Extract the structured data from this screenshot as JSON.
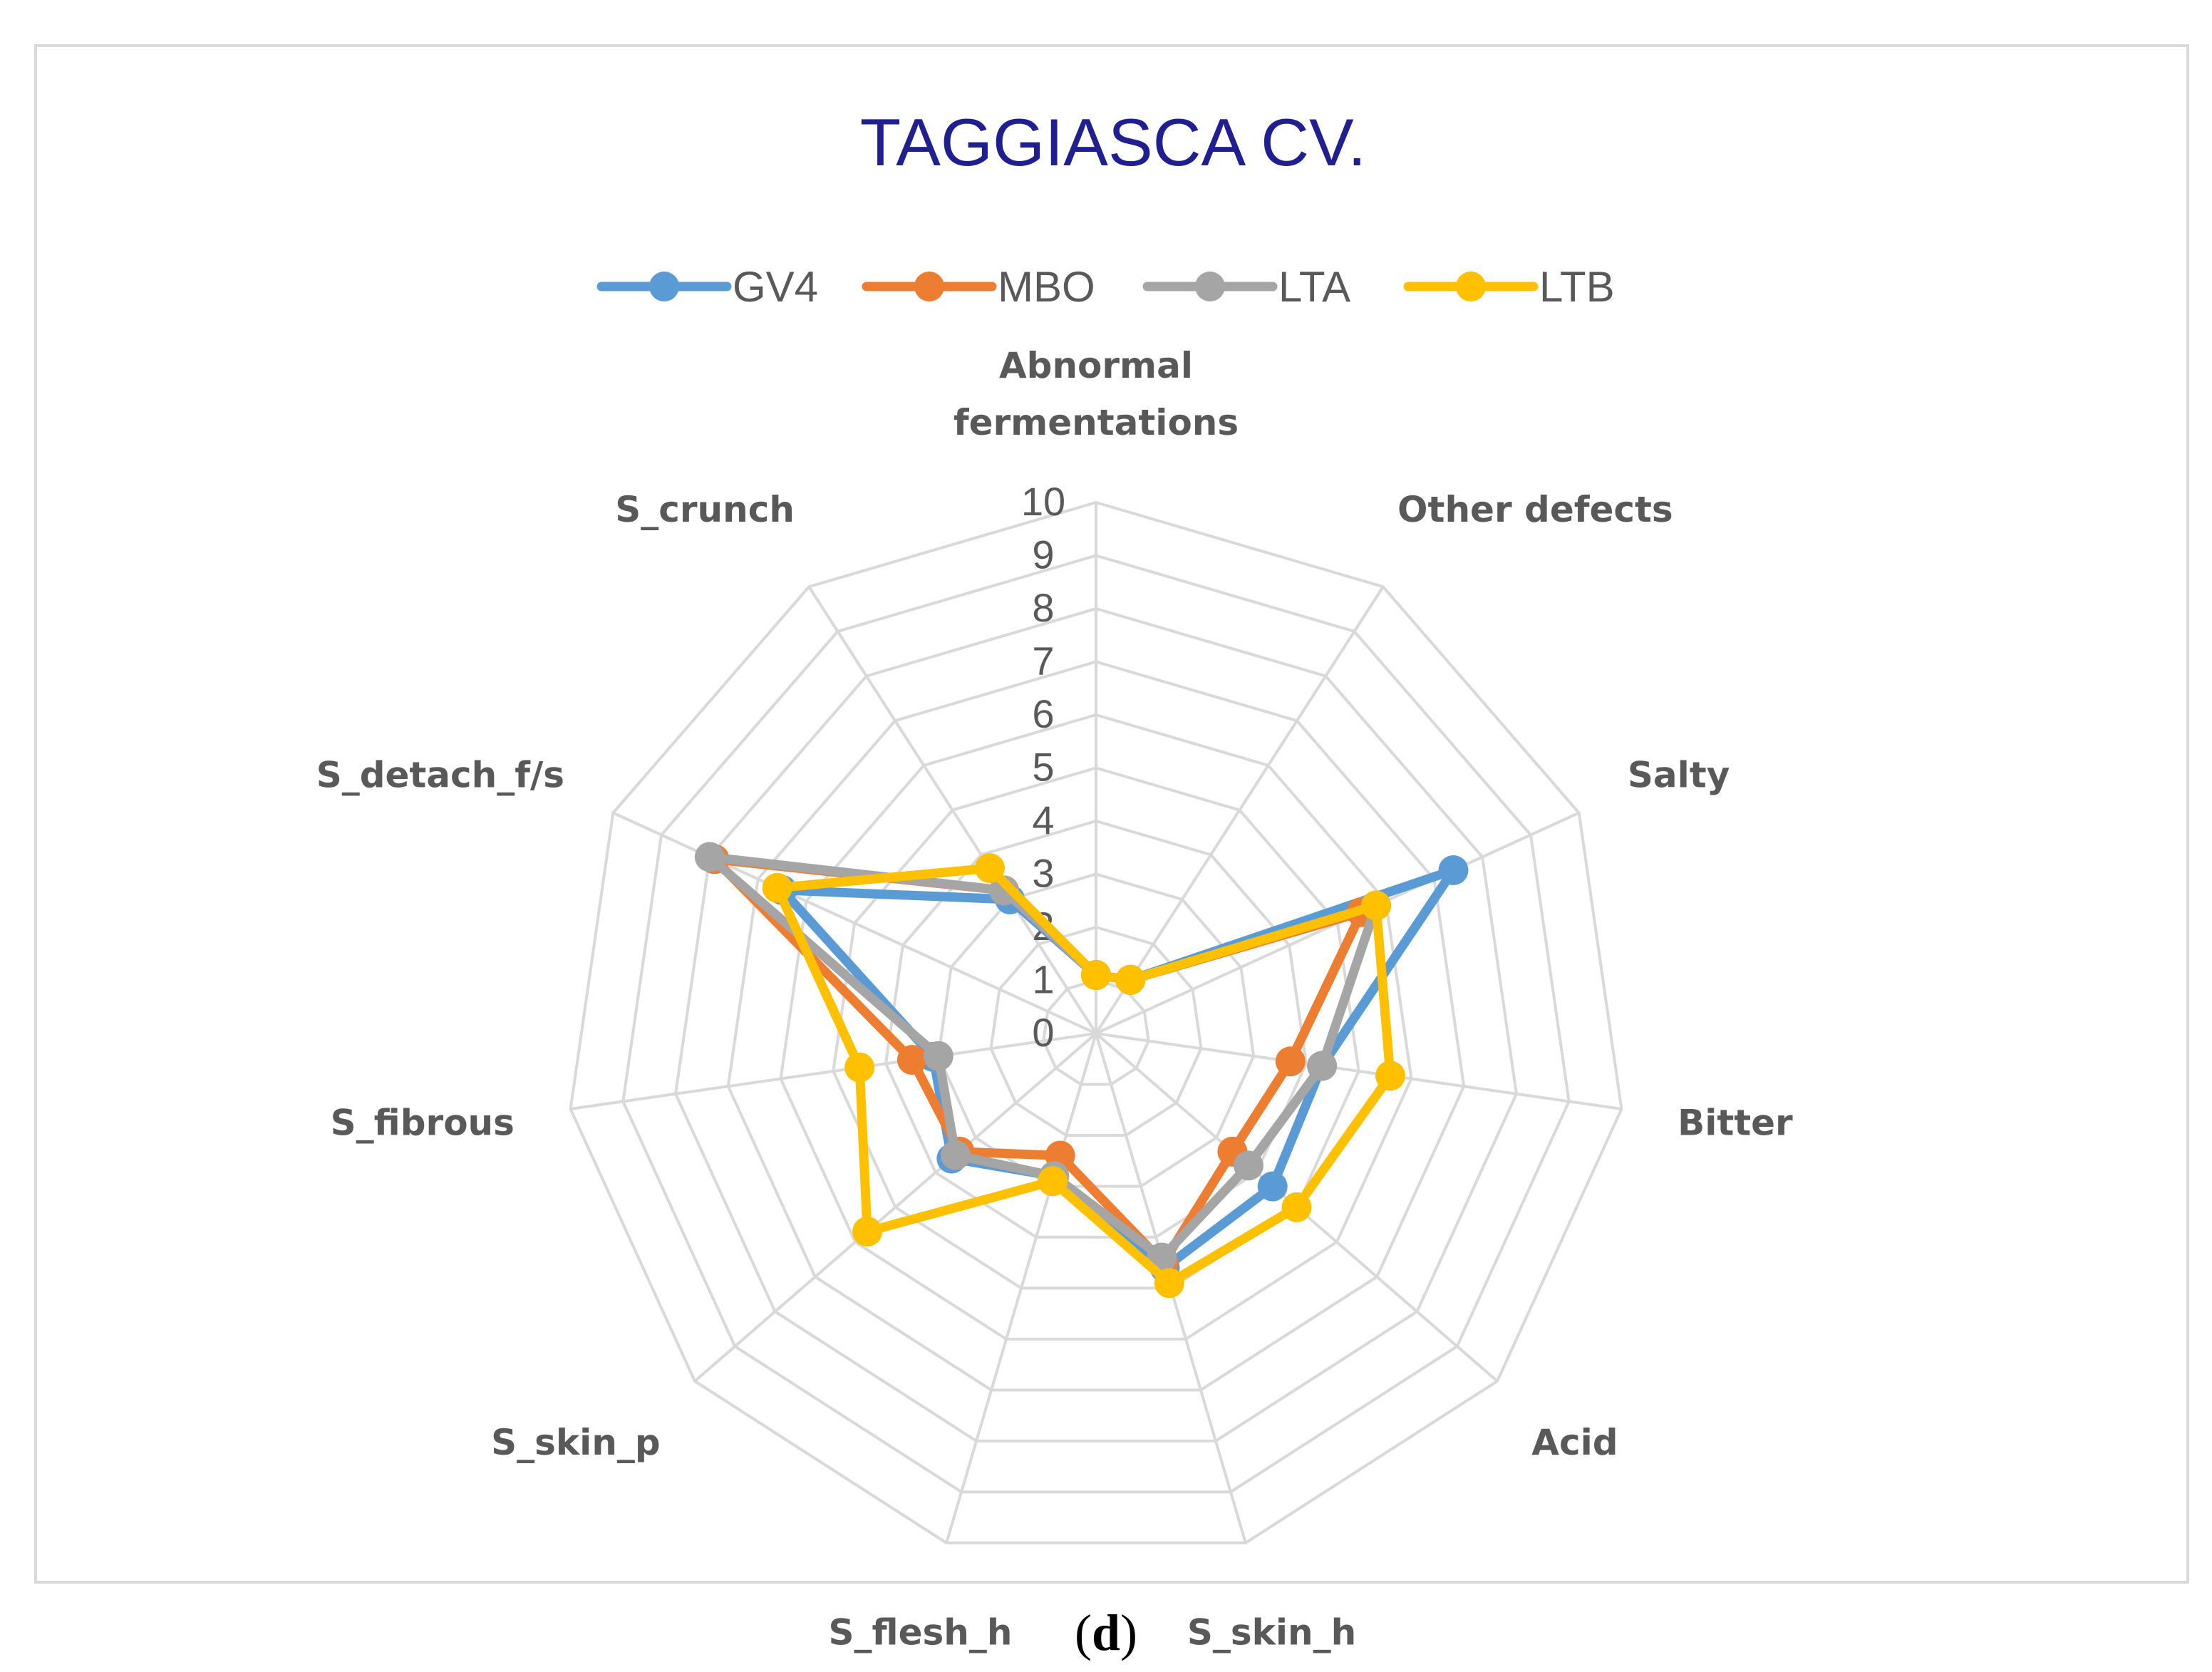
{
  "caption": {
    "open": "(",
    "letter": "d",
    "close": ")"
  },
  "chart_data": {
    "type": "radar",
    "title": "TAGGIASCA CV.",
    "axes": [
      "Abnormal fermentations",
      "Other defects",
      "Salty",
      "Bitter",
      "Acid",
      "S_skin_h",
      "S_flesh_h",
      "S_skin_p",
      "S_fibrous",
      "S_detach_f/s",
      "S_crunch"
    ],
    "ticks": [
      "0",
      "1",
      "2",
      "3",
      "4",
      "5",
      "6",
      "7",
      "8",
      "9",
      "10"
    ],
    "rmin": 0,
    "rmax": 10,
    "legend_position": "top",
    "series": [
      {
        "name": "GV4",
        "color": "#5b9bd5",
        "values": [
          1.1,
          1.2,
          7.4,
          4.3,
          4.4,
          4.6,
          2.8,
          3.6,
          3.1,
          6.5,
          3.0
        ]
      },
      {
        "name": "MBO",
        "color": "#ed7d31",
        "values": [
          1.1,
          1.2,
          5.5,
          3.7,
          3.4,
          4.5,
          2.4,
          3.4,
          3.5,
          7.9,
          3.2
        ]
      },
      {
        "name": "LTA",
        "color": "#a5a5a5",
        "values": [
          1.1,
          1.2,
          5.8,
          4.3,
          3.8,
          4.4,
          2.8,
          3.5,
          3.0,
          8.0,
          3.2
        ]
      },
      {
        "name": "LTB",
        "color": "#ffc000",
        "values": [
          1.1,
          1.2,
          5.8,
          5.6,
          5.0,
          4.9,
          2.9,
          5.7,
          4.5,
          6.6,
          3.7
        ]
      }
    ]
  }
}
